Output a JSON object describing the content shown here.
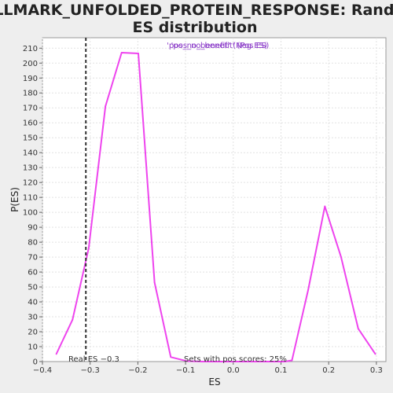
{
  "chart_data": {
    "type": "line",
    "title": "HALLMARK_UNFOLDED_PROTEIN_RESPONSE: Random ES distribution",
    "title_lines": [
      "HALLMARK_UNFOLDED_PROTEIN_RESPONSE: Random",
      "ES distribution"
    ],
    "xlabel": "ES",
    "ylabel": "P(ES)",
    "xlim": [
      -0.4,
      0.32
    ],
    "ylim": [
      0,
      217
    ],
    "x_ticks": [
      -0.4,
      -0.3,
      -0.2,
      -0.1,
      0.0,
      0.1,
      0.2,
      0.3
    ],
    "x_tick_labels": [
      "−0.4",
      "−0.3",
      "−0.2",
      "−0.1",
      "0.0",
      "0.1",
      "0.2",
      "0.3"
    ],
    "y_ticks": [
      0,
      10,
      20,
      30,
      40,
      50,
      60,
      70,
      80,
      90,
      100,
      110,
      120,
      130,
      140,
      150,
      160,
      170,
      180,
      190,
      200,
      210
    ],
    "grid": true,
    "legend_labels": [
      "'pos_no_benefit' (Neg ES)",
      "'pos_no_benefit' (Pos ES)"
    ],
    "legend_position": "top-center",
    "series": [
      {
        "color": "#ee44ee",
        "x": [
          -0.371,
          -0.337,
          -0.303,
          -0.268,
          -0.234,
          -0.199,
          -0.165,
          -0.131,
          -0.097,
          -0.063,
          -0.028,
          0.006,
          0.04,
          0.074,
          0.108,
          0.123,
          0.157,
          0.192,
          0.226,
          0.262,
          0.298
        ],
        "y": [
          5,
          28,
          76,
          171,
          207,
          206.5,
          53,
          3,
          0.3,
          0,
          0,
          0,
          0,
          0,
          0,
          0.8,
          48,
          104,
          70,
          22,
          5
        ]
      }
    ],
    "vline": {
      "x": -0.309,
      "label": "Real ES −0.3",
      "style": "dashed",
      "color": "#333333"
    },
    "annotation": "Sets with pos scores: 25%"
  }
}
